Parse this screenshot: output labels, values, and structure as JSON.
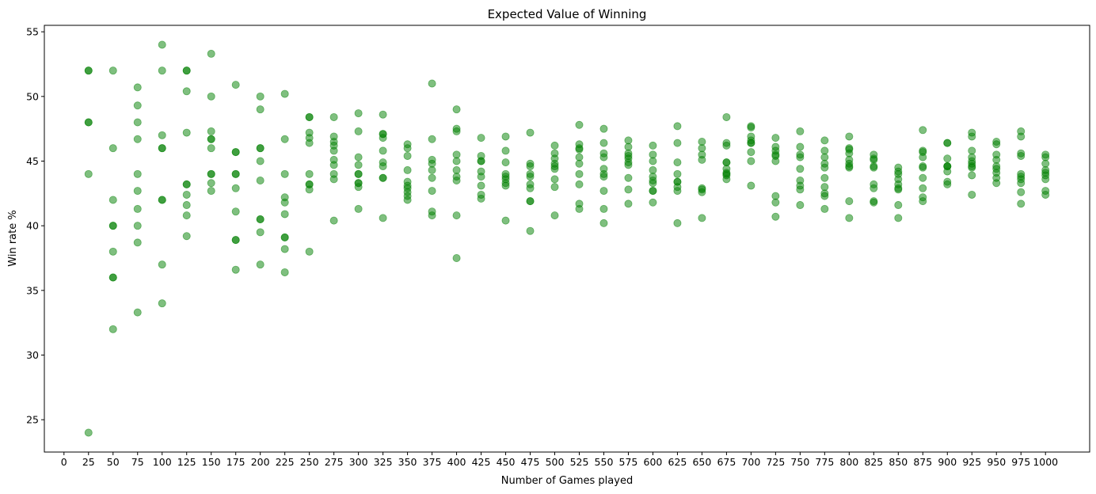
{
  "chart_data": {
    "type": "scatter",
    "title": "Expected Value of Winning",
    "xlabel": "Number of Games played",
    "ylabel": "Win rate %",
    "xlim": [
      -20,
      1045
    ],
    "ylim": [
      22.5,
      55.5
    ],
    "xticks": [
      0,
      25,
      50,
      75,
      100,
      125,
      150,
      175,
      200,
      225,
      250,
      275,
      300,
      325,
      350,
      375,
      400,
      425,
      450,
      475,
      500,
      525,
      550,
      575,
      600,
      625,
      650,
      675,
      700,
      725,
      750,
      775,
      800,
      825,
      850,
      875,
      900,
      925,
      950,
      975,
      1000
    ],
    "yticks": [
      25,
      30,
      35,
      40,
      45,
      50,
      55
    ],
    "grid": false,
    "marker_color": "#008000",
    "marker_alpha": 0.5,
    "series": [
      {
        "x": 25,
        "y": [
          52,
          52,
          48,
          48,
          44,
          24
        ]
      },
      {
        "x": 50,
        "y": [
          52,
          46,
          42,
          40,
          40,
          38,
          36,
          36,
          32
        ]
      },
      {
        "x": 75,
        "y": [
          50.7,
          49.3,
          48,
          46.7,
          44,
          42.7,
          41.3,
          40,
          38.7,
          33.3
        ]
      },
      {
        "x": 100,
        "y": [
          54,
          52,
          47,
          46,
          46,
          42,
          42,
          37,
          34
        ]
      },
      {
        "x": 125,
        "y": [
          52,
          52,
          50.4,
          47.2,
          43.2,
          43.2,
          42.4,
          41.6,
          40.8,
          39.2
        ]
      },
      {
        "x": 150,
        "y": [
          53.3,
          50,
          47.3,
          46.7,
          46.7,
          46,
          44,
          44,
          43.3,
          42.7
        ]
      },
      {
        "x": 175,
        "y": [
          50.9,
          45.7,
          45.7,
          44,
          44,
          42.9,
          41.1,
          38.9,
          38.9,
          36.6
        ]
      },
      {
        "x": 200,
        "y": [
          50,
          49,
          46,
          46,
          45,
          43.5,
          40.5,
          40.5,
          39.5,
          37
        ]
      },
      {
        "x": 225,
        "y": [
          50.2,
          46.7,
          44,
          42.2,
          41.8,
          40.9,
          39.1,
          39.1,
          38.2,
          36.4
        ]
      },
      {
        "x": 250,
        "y": [
          48.4,
          48.4,
          47.2,
          46.8,
          46.4,
          44,
          43.2,
          43.2,
          42.8,
          38
        ]
      },
      {
        "x": 275,
        "y": [
          48.4,
          46.9,
          46.5,
          46.2,
          45.8,
          45.1,
          44.7,
          44,
          43.6,
          40.4
        ]
      },
      {
        "x": 300,
        "y": [
          48.7,
          47.3,
          45.3,
          44.7,
          44,
          44,
          43.3,
          43.3,
          43,
          41.3
        ]
      },
      {
        "x": 325,
        "y": [
          48.6,
          47.1,
          47.1,
          46.8,
          45.8,
          44.9,
          44.6,
          43.7,
          43.7,
          40.6
        ]
      },
      {
        "x": 350,
        "y": [
          46.3,
          46,
          45.4,
          44.3,
          43.4,
          43.1,
          42.9,
          42.6,
          42.3,
          42
        ]
      },
      {
        "x": 375,
        "y": [
          51,
          46.7,
          45.1,
          44.8,
          44.3,
          43.7,
          42.7,
          41.1,
          40.8
        ]
      },
      {
        "x": 400,
        "y": [
          49,
          47.5,
          47.3,
          45.5,
          45,
          44.3,
          43.8,
          43.5,
          40.8,
          37.5
        ]
      },
      {
        "x": 425,
        "y": [
          46.8,
          45.4,
          45,
          45,
          44.2,
          43.8,
          43.1,
          42.4,
          42.1
        ]
      },
      {
        "x": 450,
        "y": [
          46.9,
          45.8,
          44.9,
          44,
          43.8,
          43.6,
          43.3,
          43.1,
          40.4
        ]
      },
      {
        "x": 475,
        "y": [
          47.2,
          44.8,
          44.6,
          44,
          43.8,
          43.2,
          42.9,
          41.9,
          41.9,
          39.6
        ]
      },
      {
        "x": 500,
        "y": [
          46.2,
          45.6,
          45.2,
          44.8,
          44.6,
          44.4,
          43.6,
          43,
          40.8
        ]
      },
      {
        "x": 525,
        "y": [
          47.8,
          46.3,
          46,
          45.9,
          45.3,
          44.8,
          44,
          43.2,
          41.7,
          41.3
        ]
      },
      {
        "x": 550,
        "y": [
          47.5,
          46.4,
          45.6,
          45.3,
          44.4,
          44,
          43.8,
          42.7,
          41.3,
          40.2
        ]
      },
      {
        "x": 575,
        "y": [
          46.6,
          46.1,
          45.6,
          45.4,
          45.2,
          44.9,
          44.7,
          43.7,
          42.8,
          41.7
        ]
      },
      {
        "x": 600,
        "y": [
          46.2,
          45.5,
          45,
          44.3,
          43.8,
          43.5,
          43.3,
          42.7,
          42.7,
          41.8
        ]
      },
      {
        "x": 625,
        "y": [
          47.7,
          46.4,
          44.9,
          44,
          43.4,
          43.4,
          43,
          42.7,
          40.2
        ]
      },
      {
        "x": 650,
        "y": [
          46.5,
          46,
          45.5,
          45.1,
          42.9,
          42.8,
          42.6,
          40.6
        ]
      },
      {
        "x": 675,
        "y": [
          48.4,
          46.4,
          46.2,
          44.9,
          44.9,
          44.4,
          44.1,
          44,
          43.9,
          43.6
        ]
      },
      {
        "x": 700,
        "y": [
          47.7,
          47.6,
          46.9,
          46.4,
          46.4,
          46.6,
          45.7,
          45,
          43.1
        ]
      },
      {
        "x": 725,
        "y": [
          46.8,
          46.1,
          45.8,
          45.5,
          45.4,
          45,
          42.3,
          41.8,
          40.7
        ]
      },
      {
        "x": 750,
        "y": [
          47.3,
          46.1,
          45.5,
          45.3,
          44.4,
          43.5,
          43.1,
          42.8,
          41.6
        ]
      },
      {
        "x": 775,
        "y": [
          46.6,
          45.8,
          45.3,
          44.8,
          44.5,
          43.7,
          43,
          42.5,
          42.3,
          41.3
        ]
      },
      {
        "x": 800,
        "y": [
          46.9,
          46,
          45.9,
          45.6,
          45.1,
          44.8,
          44.6,
          44.5,
          41.9,
          40.6
        ]
      },
      {
        "x": 825,
        "y": [
          45.5,
          45.2,
          45.1,
          44.6,
          44.5,
          43.2,
          42.9,
          41.9,
          41.8
        ]
      },
      {
        "x": 850,
        "y": [
          44.5,
          44.2,
          44,
          43.6,
          43.2,
          42.9,
          42.8,
          41.6,
          40.6
        ]
      },
      {
        "x": 875,
        "y": [
          47.4,
          45.8,
          45.7,
          45.3,
          44.6,
          44.5,
          43.7,
          42.9,
          42.2,
          41.9
        ]
      },
      {
        "x": 900,
        "y": [
          46.4,
          46.4,
          45.2,
          44.6,
          44.6,
          44.6,
          44.2,
          43.4,
          43.2
        ]
      },
      {
        "x": 925,
        "y": [
          47.2,
          46.9,
          45.8,
          45.3,
          45,
          44.8,
          44.6,
          44.5,
          43.9,
          42.4
        ]
      },
      {
        "x": 950,
        "y": [
          46.5,
          46.3,
          45.5,
          45.1,
          44.6,
          44.4,
          44.1,
          43.7,
          43.3
        ]
      },
      {
        "x": 975,
        "y": [
          47.3,
          46.9,
          45.6,
          45.4,
          44,
          43.8,
          43.6,
          43.3,
          42.6,
          41.7
        ]
      },
      {
        "x": 1000,
        "y": [
          45.5,
          45.3,
          44.8,
          44.3,
          44.1,
          43.9,
          43.6,
          42.7,
          42.4
        ]
      }
    ]
  }
}
